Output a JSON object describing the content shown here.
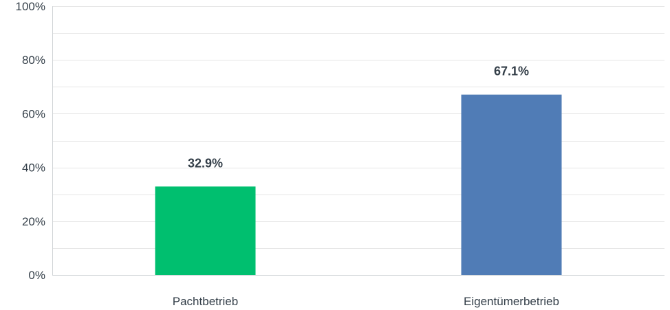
{
  "chart_data": {
    "type": "bar",
    "categories": [
      "Pachtbetrieb",
      "Eigentümerbetrieb"
    ],
    "values": [
      32.9,
      67.1
    ],
    "data_labels": [
      "32.9%",
      "67.1%"
    ],
    "colors": [
      "#00bf6f",
      "#507cb6"
    ],
    "ylim": [
      0,
      100
    ],
    "y_ticks": [
      0,
      20,
      40,
      60,
      80,
      100
    ],
    "y_tick_labels": [
      "0%",
      "20%",
      "40%",
      "60%",
      "80%",
      "100%"
    ],
    "minor_grid_step": 10,
    "grid": true,
    "legend": "none"
  }
}
